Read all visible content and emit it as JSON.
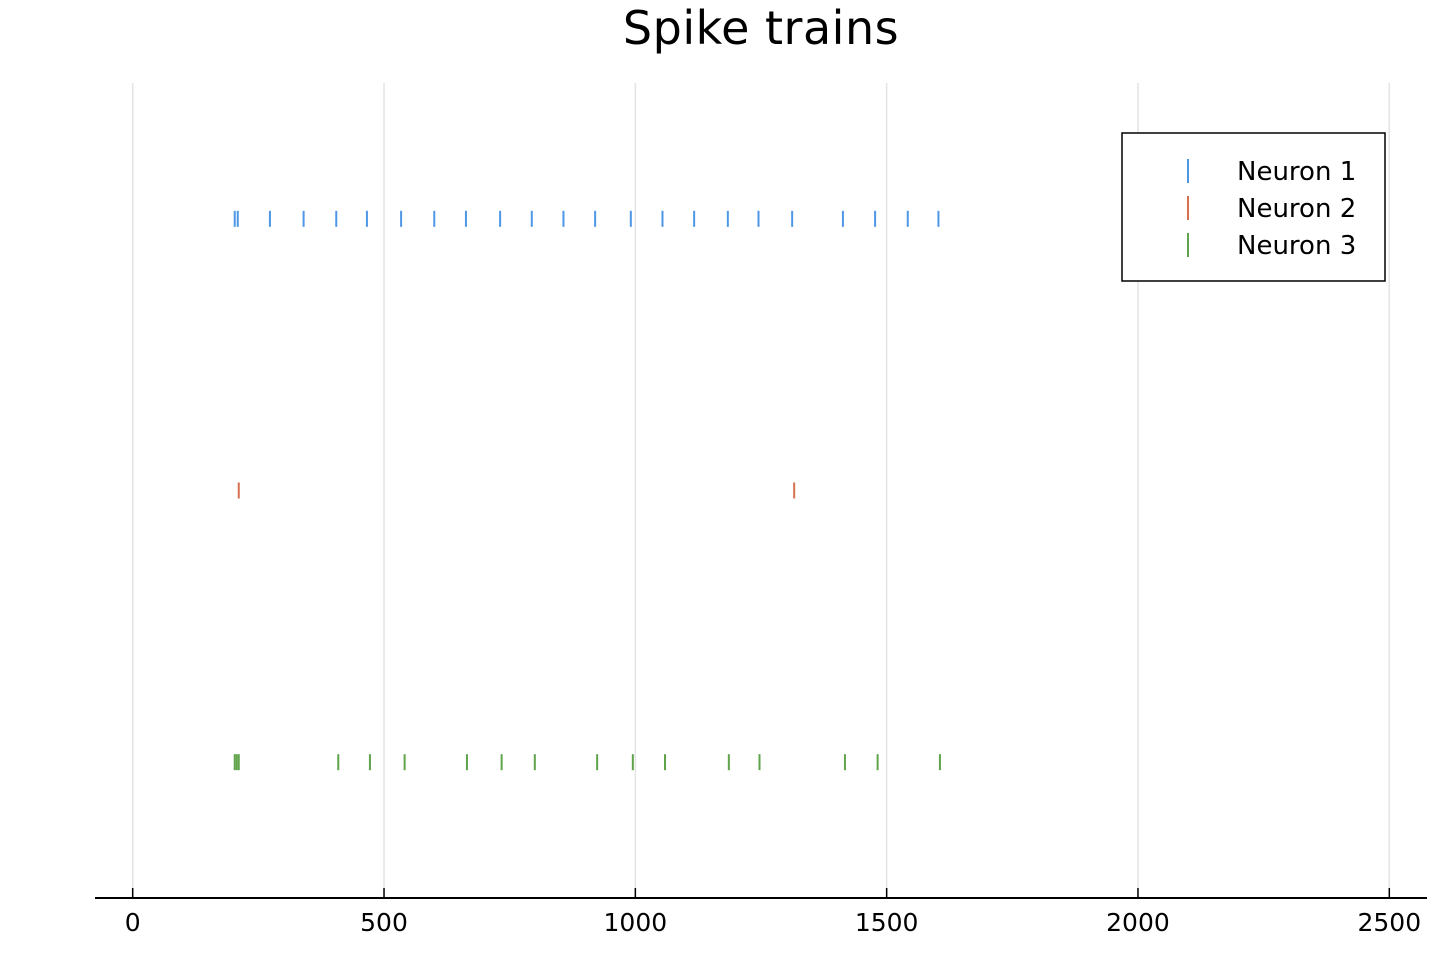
{
  "chart_data": {
    "type": "scatter",
    "marker": "vline",
    "title": "Spike trains",
    "xlabel": "",
    "ylabel": "",
    "xlim": [
      -75,
      2575
    ],
    "ylim": [
      0,
      3
    ],
    "grid": {
      "x": true,
      "y": false
    },
    "x_ticks": [
      0,
      500,
      1000,
      1500,
      2000,
      2500
    ],
    "x_tick_labels": [
      "0",
      "500",
      "1000",
      "1500",
      "2000",
      "2500"
    ],
    "legend": {
      "position": "top-right"
    },
    "series": [
      {
        "name": "Neuron 1",
        "color": "#4e96e6",
        "row": 2.5,
        "x": [
          203,
          209,
          273,
          340,
          405,
          466,
          534,
          600,
          663,
          731,
          794,
          857,
          920,
          991,
          1054,
          1117,
          1184,
          1245,
          1312,
          1413,
          1477,
          1542,
          1603
        ]
      },
      {
        "name": "Neuron 2",
        "color": "#d6704f",
        "row": 1.5,
        "x": [
          211,
          1316
        ]
      },
      {
        "name": "Neuron 3",
        "color": "#5fa34a",
        "row": 0.5,
        "x": [
          203,
          207,
          211,
          409,
          472,
          541,
          665,
          734,
          800,
          924,
          995,
          1059,
          1186,
          1247,
          1417,
          1482,
          1606
        ]
      }
    ]
  }
}
